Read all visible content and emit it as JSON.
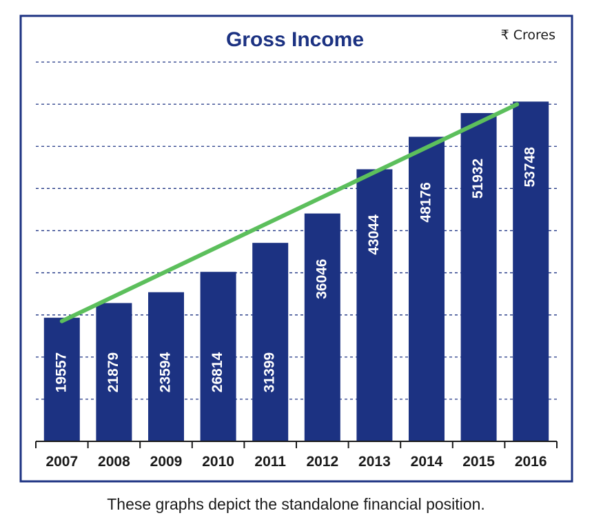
{
  "chart_data": {
    "type": "bar",
    "title": "Gross Income",
    "unit_label": "₹ Crores",
    "categories": [
      "2007",
      "2008",
      "2009",
      "2010",
      "2011",
      "2012",
      "2013",
      "2014",
      "2015",
      "2016"
    ],
    "values": [
      19557,
      21879,
      23594,
      26814,
      31399,
      36046,
      43044,
      48176,
      51932,
      53748
    ],
    "data_labels": [
      "19557",
      "21879",
      "23594",
      "26814",
      "31399",
      "36046",
      "43044",
      "48176",
      "51932",
      "53748"
    ],
    "ylim": [
      0,
      60000
    ],
    "grid": true,
    "trend_line": {
      "from": "2007",
      "to": "2016"
    },
    "colors": {
      "bar": "#1c3282",
      "trend": "#5cbf5c",
      "frame": "#1c3282",
      "title": "#1c3282",
      "grid": "#1c3282"
    }
  },
  "caption": "These graphs depict the standalone financial position."
}
